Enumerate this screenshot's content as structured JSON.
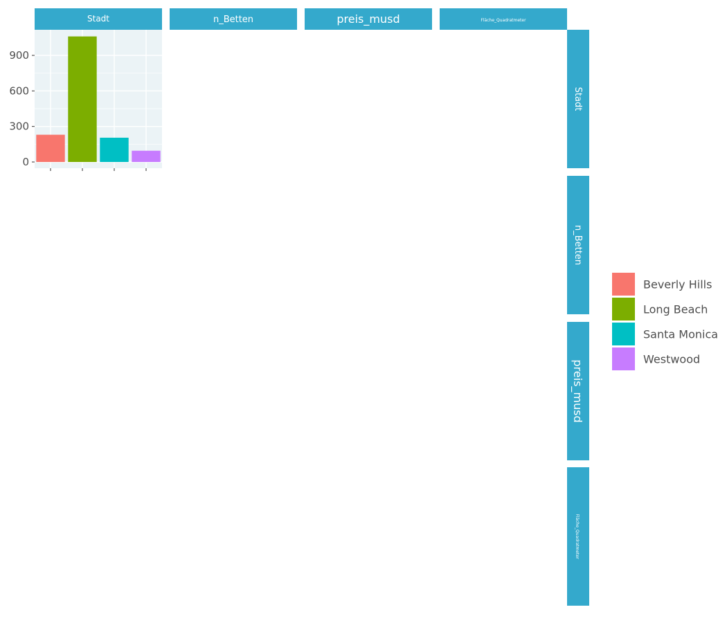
{
  "chart_data": {
    "type": "bar",
    "title": "",
    "xlabel": "",
    "ylabel": "",
    "facet_variables": [
      "Stadt",
      "n_Betten",
      "preis_musd",
      "Fläche_Quadratmeter"
    ],
    "categories": [
      "Beverly Hills",
      "Long Beach",
      "Santa Monica",
      "Westwood"
    ],
    "values": [
      230,
      1060,
      205,
      95
    ],
    "ylim": [
      0,
      1100
    ],
    "yticks": [
      0,
      300,
      600,
      900
    ],
    "grid": true,
    "legend": {
      "position": "right",
      "entries": [
        "Beverly Hills",
        "Long Beach",
        "Santa Monica",
        "Westwood"
      ]
    }
  },
  "colors": {
    "strip": "#34a9cc",
    "panel_background": "#ebf3f6",
    "grid": "#ffffff",
    "series": [
      "#f8766d",
      "#7cae00",
      "#00bfc4",
      "#c77cff"
    ]
  }
}
